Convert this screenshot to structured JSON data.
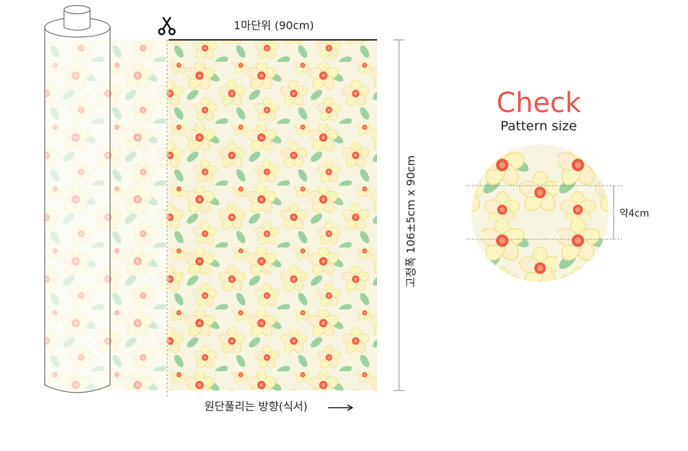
{
  "cut_unit_label": "1마단위 (90cm)",
  "width_label": "고정폭 106±5cm x 90cm",
  "direction_label": "원단풀리는 방향(식서)",
  "check": {
    "title": "Check",
    "subtitle": "Pattern size",
    "size_label": "약4cm"
  }
}
